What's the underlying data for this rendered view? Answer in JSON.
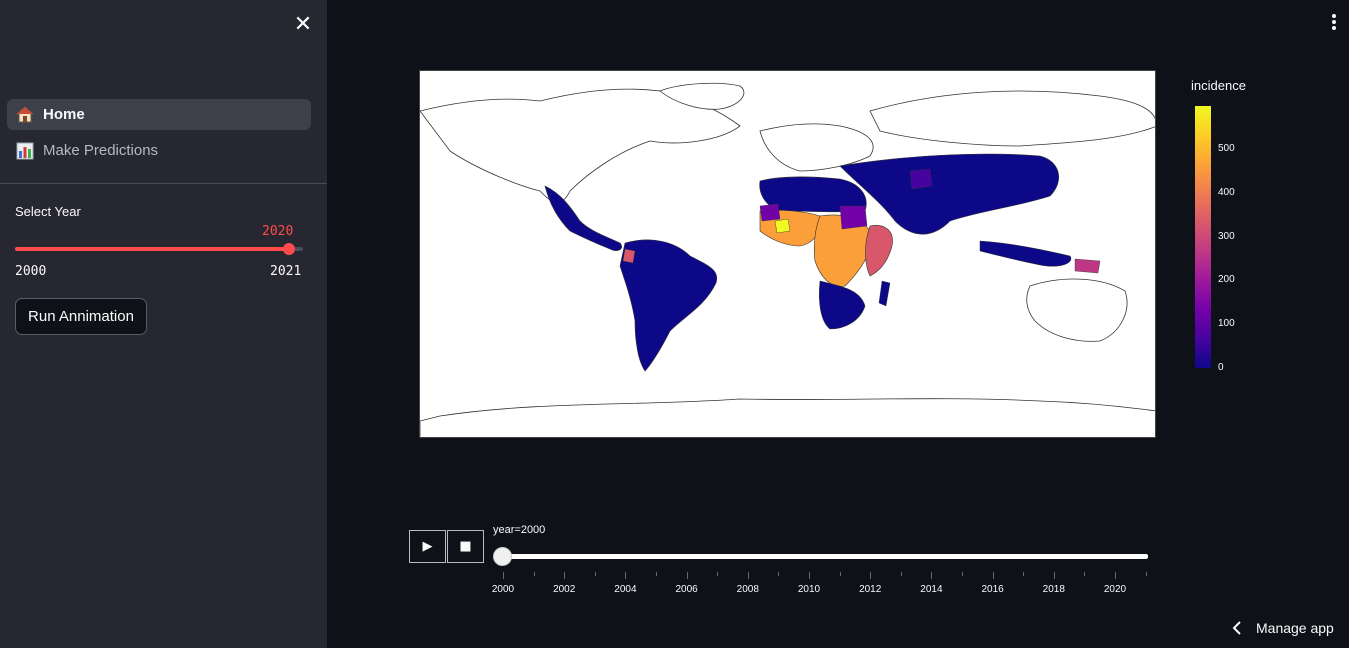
{
  "sidebar": {
    "nav": [
      {
        "label": "Home",
        "icon": "house-icon"
      },
      {
        "label": "Make Predictions",
        "icon": "bar-chart-icon"
      }
    ],
    "slider": {
      "label": "Select Year",
      "value": "2020",
      "min": "2000",
      "max": "2021"
    },
    "run_button": "Run Annimation"
  },
  "main": {
    "colorbar": {
      "title": "incidence",
      "ticks": [
        "0",
        "100",
        "200",
        "300",
        "400",
        "500"
      ]
    },
    "animation": {
      "current_label": "year=2000",
      "tick_labels": [
        "2000",
        "2002",
        "2004",
        "2006",
        "2008",
        "2010",
        "2012",
        "2014",
        "2016",
        "2018",
        "2020"
      ]
    },
    "manage_app": "Manage app"
  },
  "colors": {
    "accent": "#ff4b4b",
    "background": "#0e1117",
    "sidebar": "#262730"
  },
  "chart_data": {
    "type": "heatmap",
    "title": "",
    "colorbar_title": "incidence",
    "colorscale": "plasma",
    "zlim": [
      0,
      600
    ],
    "frame": "year=2000",
    "regions": [
      {
        "name": "Americas",
        "level": "low"
      },
      {
        "name": "West Africa",
        "level": "high"
      },
      {
        "name": "Central Africa",
        "level": "high"
      },
      {
        "name": "East Africa",
        "level": "medium-high"
      },
      {
        "name": "Southern Africa",
        "level": "low"
      },
      {
        "name": "South Asia",
        "level": "low"
      },
      {
        "name": "East Asia",
        "level": "low"
      },
      {
        "name": "Papua New Guinea",
        "level": "medium"
      }
    ]
  }
}
